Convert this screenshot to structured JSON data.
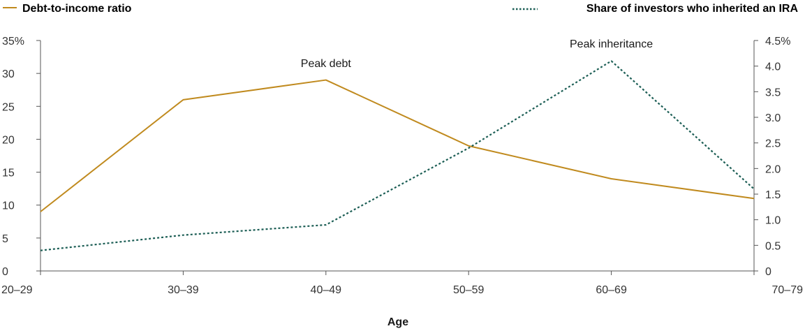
{
  "chart_data": {
    "type": "line",
    "xlabel": "Age",
    "categories": [
      "20–29",
      "30–39",
      "40–49",
      "50–59",
      "60–69",
      "70–79"
    ],
    "y_left": {
      "ticks": [
        "35%",
        "30",
        "25",
        "20",
        "15",
        "10",
        "5",
        "0"
      ],
      "tick_values": [
        35,
        30,
        25,
        20,
        15,
        10,
        5,
        0
      ],
      "ylim": [
        0,
        35
      ]
    },
    "y_right": {
      "ticks": [
        "4.5%",
        "4.0",
        "3.5",
        "3.0",
        "2.5",
        "2.0",
        "1.5",
        "1.0",
        "0.5",
        "0"
      ],
      "tick_values": [
        4.5,
        4.0,
        3.5,
        3.0,
        2.5,
        2.0,
        1.5,
        1.0,
        0.5,
        0
      ],
      "ylim": [
        0,
        4.5
      ]
    },
    "series": [
      {
        "name": "Debt-to-income ratio",
        "axis": "left",
        "style": "solid",
        "color": "#c08a1e",
        "values": [
          9,
          26,
          29,
          19,
          14,
          11
        ]
      },
      {
        "name": "Share of investors who inherited an IRA",
        "axis": "right",
        "style": "dotted",
        "color": "#1c5e55",
        "values": [
          0.4,
          0.7,
          0.9,
          2.4,
          4.1,
          1.6
        ]
      }
    ],
    "annotations": [
      {
        "text": "Peak debt",
        "category": "40–49"
      },
      {
        "text": "Peak inheritance",
        "category": "60–69"
      }
    ],
    "legend_position": "top",
    "grid": false
  }
}
